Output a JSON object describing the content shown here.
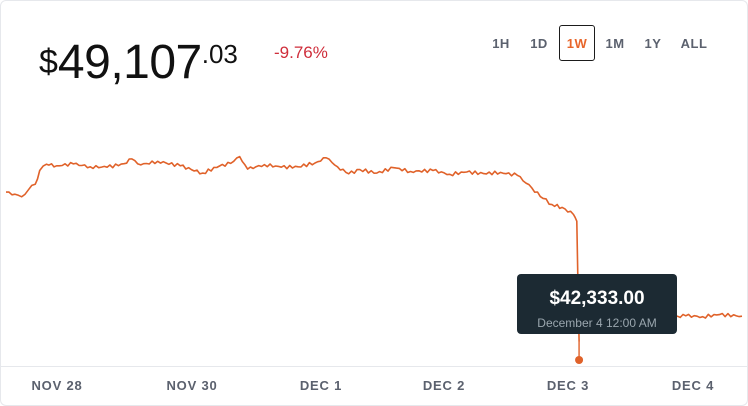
{
  "header": {
    "currency_symbol": "$",
    "price_main": "49,107",
    "price_cents": ".03",
    "change": "-9.76%"
  },
  "ranges": [
    {
      "label": "1H",
      "active": false
    },
    {
      "label": "1D",
      "active": false
    },
    {
      "label": "1W",
      "active": true
    },
    {
      "label": "1M",
      "active": false
    },
    {
      "label": "1Y",
      "active": false
    },
    {
      "label": "ALL",
      "active": false
    }
  ],
  "tooltip": {
    "value": "$42,333.00",
    "date": "December 4 12:00 AM"
  },
  "colors": {
    "line": "#e0622a",
    "change_negative": "#cf2e3b",
    "active_range": "#e8662b",
    "tooltip_bg": "#1c2a33"
  },
  "chart_data": {
    "type": "line",
    "x_ticks": [
      "NOV 28",
      "NOV 30",
      "DEC 1",
      "DEC 2",
      "DEC 3",
      "DEC 4"
    ],
    "x_range": [
      0,
      6.55
    ],
    "ylim": [
      41000,
      52500
    ],
    "highlight": {
      "x": 5.1,
      "y": 42333
    },
    "gap": [
      5.1,
      5.6
    ],
    "series": [
      {
        "values": [
          [
            0,
            48650
          ],
          [
            0.08,
            48560
          ],
          [
            0.14,
            48450
          ],
          [
            0.2,
            48750
          ],
          [
            0.26,
            48980
          ],
          [
            0.3,
            49560
          ],
          [
            0.36,
            49830
          ],
          [
            0.45,
            49760
          ],
          [
            0.6,
            49840
          ],
          [
            0.75,
            49720
          ],
          [
            0.9,
            49700
          ],
          [
            1.05,
            49850
          ],
          [
            1.12,
            50050
          ],
          [
            1.2,
            49800
          ],
          [
            1.35,
            49950
          ],
          [
            1.55,
            49760
          ],
          [
            1.75,
            49450
          ],
          [
            1.9,
            49750
          ],
          [
            2.0,
            49860
          ],
          [
            2.08,
            50150
          ],
          [
            2.15,
            49620
          ],
          [
            2.3,
            49810
          ],
          [
            2.45,
            49700
          ],
          [
            2.6,
            49720
          ],
          [
            2.75,
            49880
          ],
          [
            2.85,
            50100
          ],
          [
            2.95,
            49720
          ],
          [
            3.05,
            49420
          ],
          [
            3.15,
            49600
          ],
          [
            3.3,
            49450
          ],
          [
            3.45,
            49680
          ],
          [
            3.6,
            49520
          ],
          [
            3.8,
            49560
          ],
          [
            3.95,
            49400
          ],
          [
            4.1,
            49500
          ],
          [
            4.25,
            49430
          ],
          [
            4.4,
            49480
          ],
          [
            4.55,
            49360
          ],
          [
            4.68,
            48820
          ],
          [
            4.78,
            48380
          ],
          [
            4.86,
            48120
          ],
          [
            4.95,
            48000
          ],
          [
            5.05,
            47700
          ],
          [
            5.08,
            47420
          ],
          [
            5.1,
            42333
          ]
        ]
      },
      {
        "values": [
          [
            5.6,
            43400
          ],
          [
            5.75,
            43250
          ],
          [
            5.9,
            43350
          ],
          [
            6.05,
            43420
          ],
          [
            6.2,
            43380
          ],
          [
            6.35,
            43470
          ],
          [
            6.55,
            43400
          ]
        ]
      }
    ]
  }
}
